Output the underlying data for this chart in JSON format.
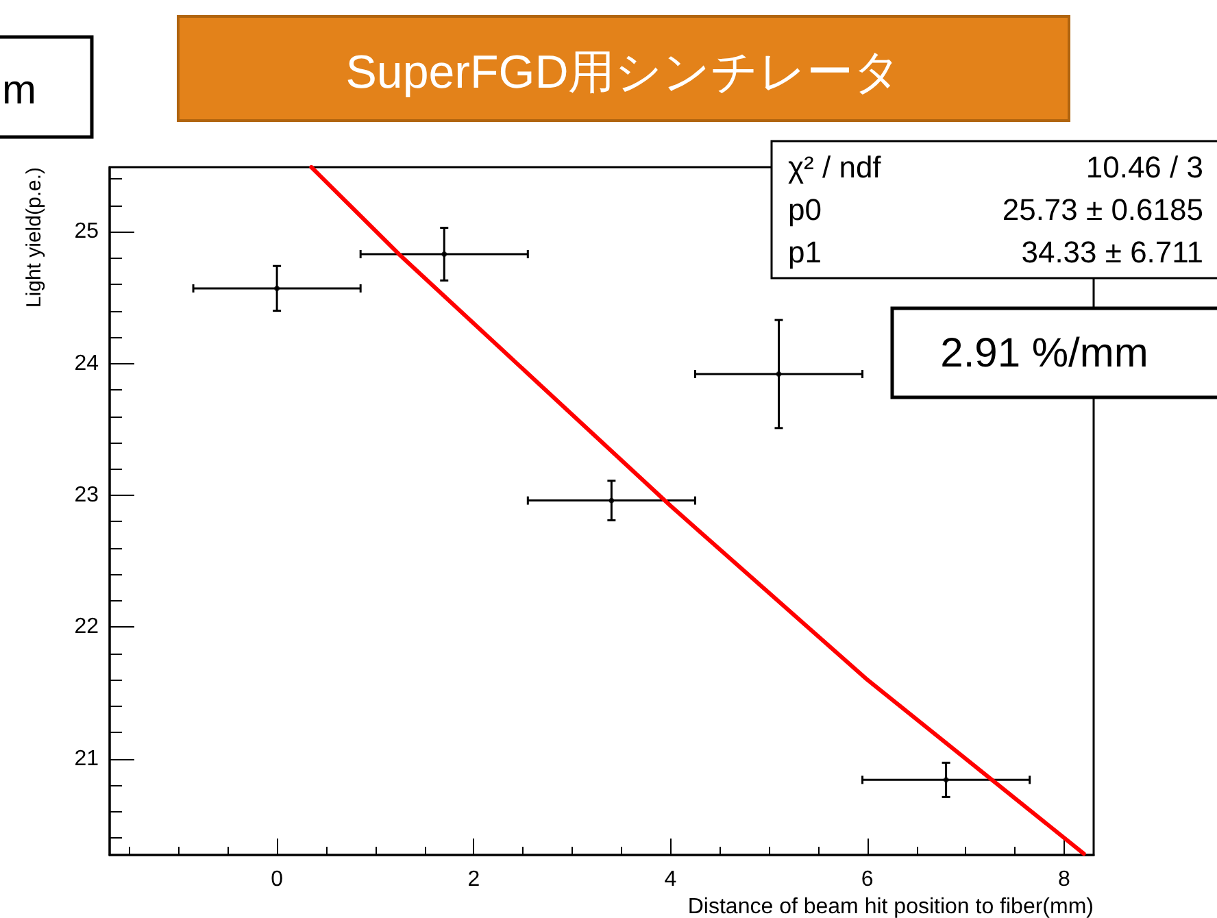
{
  "chart_data": {
    "type": "scatter",
    "title": "SuperFGD用シンチレータ",
    "xlabel": "Distance of beam hit position to fiber(mm)",
    "ylabel": "Light yield(p.e.)",
    "xlim": [
      -1.7,
      8.3
    ],
    "xticks": [
      0,
      2,
      4,
      6,
      8
    ],
    "ylim": [
      20.27,
      25.49
    ],
    "yticks": [
      21,
      22,
      23,
      24,
      25
    ],
    "grid": false,
    "series": [
      {
        "color": "#000000",
        "x": [
          0,
          1.7,
          3.4,
          5.1,
          6.8
        ],
        "values": [
          24.57,
          24.83,
          22.96,
          23.92,
          20.84
        ],
        "errors": [
          0.17,
          0.2,
          0.15,
          0.41,
          0.13
        ],
        "xerrors": [
          0.85,
          0.85,
          0.85,
          0.85,
          0.85
        ]
      },
      {
        "type": "line",
        "color": "#ff0000",
        "x": [
          0.35,
          1.24,
          4,
          6,
          8.2
        ],
        "values": [
          25.49,
          24.83,
          22.92,
          21.6,
          20.28
        ]
      }
    ],
    "annotations": [
      "χ² / ndf",
      "10.46 / 3",
      "p0",
      "25.73 ± 0.6185",
      "p1",
      "34.33 ± 6.711",
      "2.91 %/mm",
      "m"
    ]
  }
}
